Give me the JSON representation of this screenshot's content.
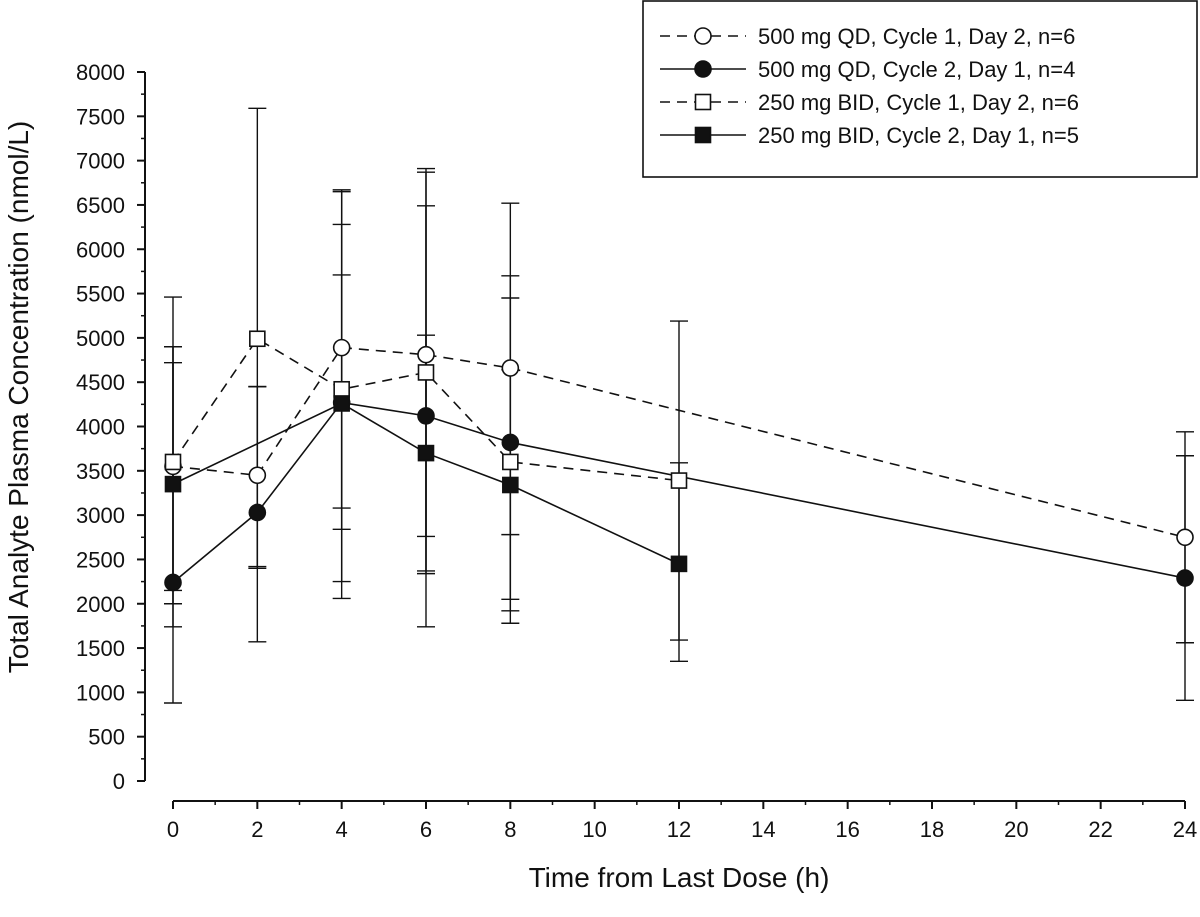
{
  "chart_data": {
    "type": "line",
    "xlabel": "Time from Last Dose (h)",
    "ylabel": "Total Analyte Plasma Concentration (nmol/L)",
    "xlim": [
      0,
      24
    ],
    "ylim": [
      0,
      8000
    ],
    "xticks": [
      0,
      2,
      4,
      6,
      8,
      10,
      12,
      14,
      16,
      18,
      20,
      22,
      24
    ],
    "yticks": [
      0,
      500,
      1000,
      1500,
      2000,
      2500,
      3000,
      3500,
      4000,
      4500,
      5000,
      5500,
      6000,
      6500,
      7000,
      7500,
      8000
    ],
    "grid": false,
    "legend_position": "top-right",
    "series": [
      {
        "name": "500 mg QD, Cycle 1, Day 2, n=6",
        "marker": "circle-open",
        "line": "dashed",
        "points": [
          {
            "x": 0,
            "y": 3550,
            "lo": 2150,
            "hi": 4900
          },
          {
            "x": 2,
            "y": 3450,
            "lo": 2420,
            "hi": 4450
          },
          {
            "x": 4,
            "y": 4890,
            "lo": 3080,
            "hi": 6670
          },
          {
            "x": 6,
            "y": 4810,
            "lo": 2760,
            "hi": 6910
          },
          {
            "x": 8,
            "y": 4660,
            "lo": 2780,
            "hi": 6520
          },
          {
            "x": 24,
            "y": 2750,
            "lo": 1560,
            "hi": 3940
          }
        ]
      },
      {
        "name": "500 mg QD, Cycle 2, Day 1, n=4",
        "marker": "circle-filled",
        "line": "solid",
        "points": [
          {
            "x": 0,
            "y": 2240,
            "lo": 880,
            "hi": 4720
          },
          {
            "x": 2,
            "y": 3030,
            "lo": 1570,
            "hi": 4450
          },
          {
            "x": 4,
            "y": 4270,
            "lo": 2060,
            "hi": 6280
          },
          {
            "x": 6,
            "y": 4120,
            "lo": 2340,
            "hi": 6490
          },
          {
            "x": 8,
            "y": 3820,
            "lo": 2050,
            "hi": 5450
          },
          {
            "x": 24,
            "y": 2290,
            "lo": 910,
            "hi": 3670
          }
        ]
      },
      {
        "name": "250 mg BID, Cycle 1, Day 2, n=6",
        "marker": "square-open",
        "line": "dashed",
        "points": [
          {
            "x": 0,
            "y": 3600,
            "lo": 1740,
            "hi": 5460
          },
          {
            "x": 2,
            "y": 4990,
            "lo": 2400,
            "hi": 7590
          },
          {
            "x": 4,
            "y": 4420,
            "lo": 2250,
            "hi": 6650
          },
          {
            "x": 6,
            "y": 4610,
            "lo": 2370,
            "hi": 6870
          },
          {
            "x": 8,
            "y": 3600,
            "lo": 1780,
            "hi": 5700
          },
          {
            "x": 12,
            "y": 3390,
            "lo": 1590,
            "hi": 5190
          }
        ]
      },
      {
        "name": "250 mg BID, Cycle 2, Day 1, n=5",
        "marker": "square-filled",
        "line": "solid",
        "points": [
          {
            "x": 0,
            "y": 3350,
            "lo": 2000,
            "hi": 4900
          },
          {
            "x": 4,
            "y": 4260,
            "lo": 2840,
            "hi": 5710
          },
          {
            "x": 6,
            "y": 3700,
            "lo": 1740,
            "hi": 5030
          },
          {
            "x": 8,
            "y": 3340,
            "lo": 1920,
            "hi": 4640
          },
          {
            "x": 12,
            "y": 2450,
            "lo": 1350,
            "hi": 3590
          }
        ]
      }
    ]
  }
}
